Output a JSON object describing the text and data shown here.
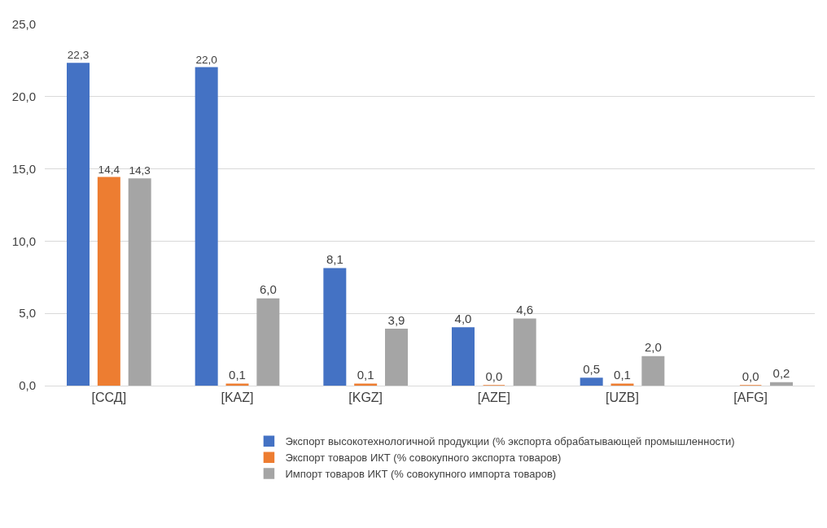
{
  "chart_data": {
    "type": "bar",
    "categories": [
      "[ССД]",
      "[KAZ]",
      "[KGZ]",
      "[AZE]",
      "[UZB]",
      "[AFG]"
    ],
    "series": [
      {
        "name": "Экспорт высокотехнологичной продукции (% экспорта обрабатывающей промышленности)",
        "color": "#4472c4",
        "values": [
          22.3,
          22.0,
          8.1,
          4.0,
          0.5,
          null
        ],
        "value_labels": [
          "22,3",
          "22,0",
          "8,1",
          "4,0",
          "0,5",
          null
        ]
      },
      {
        "name": "Экспорт товаров ИКТ (% совокупного экспорта товаров)",
        "color": "#ed7d31",
        "values": [
          14.4,
          0.1,
          0.1,
          0.0,
          0.1,
          0.0
        ],
        "value_labels": [
          "14,4",
          "0,1",
          "0,1",
          "0,0",
          "0,1",
          "0,0"
        ]
      },
      {
        "name": "Импорт товаров ИКТ (% совокупного импорта товаров)",
        "color": "#a5a5a5",
        "values": [
          14.3,
          6.0,
          3.9,
          4.6,
          2.0,
          0.2
        ],
        "value_labels": [
          "14,3",
          "6,0",
          "3,9",
          "4,6",
          "2,0",
          "0,2"
        ]
      }
    ],
    "ylim": [
      0,
      25
    ],
    "yticks": [
      {
        "value": 0,
        "label": "0,0"
      },
      {
        "value": 5,
        "label": "5,0"
      },
      {
        "value": 10,
        "label": "10,0"
      },
      {
        "value": 15,
        "label": "15,0"
      },
      {
        "value": 20,
        "label": "20,0"
      },
      {
        "value": 25,
        "label": "25,0"
      }
    ],
    "grid": "y",
    "legend": "bottom"
  }
}
